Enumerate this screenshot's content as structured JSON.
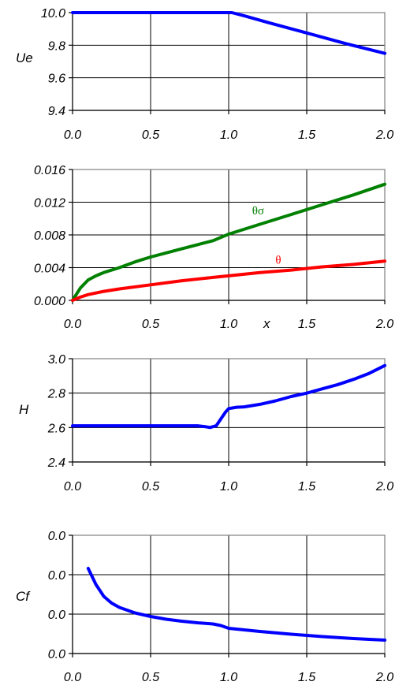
{
  "chart_data": [
    {
      "type": "line",
      "ylabel": "Ue",
      "xlabel": "",
      "xlim": [
        0,
        2
      ],
      "ylim": [
        9.4,
        10.0
      ],
      "xticks": [
        "0.0",
        "0.5",
        "1.0",
        "1.5",
        "2.0"
      ],
      "yticks": [
        "9.4",
        "9.6",
        "9.8",
        "10.0"
      ],
      "grid": true,
      "series": [
        {
          "name": "",
          "color": "#0000ff",
          "x": [
            0.0,
            0.5,
            0.95,
            1.0,
            1.02,
            1.1,
            1.25,
            1.5,
            1.75,
            2.0
          ],
          "y": [
            10.0,
            10.0,
            10.0,
            10.0,
            10.0,
            9.98,
            9.94,
            9.875,
            9.81,
            9.75
          ]
        }
      ]
    },
    {
      "type": "line",
      "ylabel": "",
      "xlabel": "x",
      "xlim": [
        0,
        2
      ],
      "ylim": [
        0.0,
        0.016
      ],
      "xticks": [
        "0.0",
        "0.5",
        "1.0",
        "1.5",
        "2.0"
      ],
      "yticks": [
        "0.000",
        "0.004",
        "0.008",
        "0.012",
        "0.016"
      ],
      "grid": true,
      "series": [
        {
          "name": "θσ",
          "color": "#008000",
          "x": [
            0.0,
            0.05,
            0.1,
            0.15,
            0.2,
            0.3,
            0.4,
            0.5,
            0.6,
            0.7,
            0.8,
            0.9,
            1.0,
            1.2,
            1.4,
            1.6,
            1.8,
            2.0
          ],
          "y": [
            0.0,
            0.0015,
            0.0025,
            0.003,
            0.0034,
            0.004,
            0.0047,
            0.0053,
            0.0058,
            0.0063,
            0.0068,
            0.0073,
            0.0081,
            0.0093,
            0.0105,
            0.0117,
            0.0129,
            0.0142
          ]
        },
        {
          "name": "θ",
          "color": "#ff0000",
          "x": [
            0.0,
            0.05,
            0.1,
            0.2,
            0.3,
            0.5,
            0.7,
            0.9,
            1.0,
            1.2,
            1.4,
            1.6,
            1.8,
            2.0
          ],
          "y": [
            0.0,
            0.0004,
            0.0007,
            0.0011,
            0.0014,
            0.0019,
            0.0024,
            0.0028,
            0.003,
            0.0034,
            0.0037,
            0.0041,
            0.0044,
            0.0048
          ]
        }
      ],
      "annotations": [
        {
          "text": "θσ",
          "x": 1.15,
          "y": 0.0105,
          "color": "#008000"
        },
        {
          "text": "θ",
          "x": 1.3,
          "y": 0.0045,
          "color": "#ff0000"
        }
      ]
    },
    {
      "type": "line",
      "ylabel": "H",
      "xlabel": "",
      "xlim": [
        0,
        2
      ],
      "ylim": [
        2.4,
        3.0
      ],
      "xticks": [
        "0.0",
        "0.5",
        "1.0",
        "1.5",
        "2.0"
      ],
      "yticks": [
        "2.4",
        "2.6",
        "2.8",
        "3.0"
      ],
      "grid": true,
      "series": [
        {
          "name": "",
          "color": "#0000ff",
          "x": [
            0.0,
            0.5,
            0.8,
            0.85,
            0.88,
            0.92,
            0.95,
            0.98,
            1.0,
            1.05,
            1.1,
            1.2,
            1.3,
            1.4,
            1.5,
            1.6,
            1.7,
            1.8,
            1.9,
            2.0
          ],
          "y": [
            2.61,
            2.61,
            2.61,
            2.605,
            2.6,
            2.61,
            2.65,
            2.69,
            2.71,
            2.718,
            2.72,
            2.735,
            2.755,
            2.78,
            2.8,
            2.825,
            2.85,
            2.88,
            2.915,
            2.96
          ]
        }
      ]
    },
    {
      "type": "line",
      "ylabel": "Cf",
      "xlabel": "",
      "xlim": [
        0,
        2
      ],
      "ylim": [
        0,
        3
      ],
      "xticks": [
        "0.0",
        "0.5",
        "1.0",
        "1.5",
        "2.0"
      ],
      "yticks": [
        "0.0",
        "0.0",
        "0.0",
        "0.0"
      ],
      "grid": true,
      "series": [
        {
          "name": "",
          "color": "#0000ff",
          "x": [
            0.1,
            0.15,
            0.2,
            0.25,
            0.3,
            0.4,
            0.5,
            0.6,
            0.7,
            0.8,
            0.9,
            0.95,
            1.0,
            1.2,
            1.4,
            1.6,
            1.8,
            2.0
          ],
          "y": [
            2.16,
            1.75,
            1.45,
            1.28,
            1.17,
            1.03,
            0.94,
            0.87,
            0.82,
            0.78,
            0.75,
            0.71,
            0.64,
            0.56,
            0.49,
            0.43,
            0.38,
            0.34
          ]
        }
      ]
    }
  ]
}
